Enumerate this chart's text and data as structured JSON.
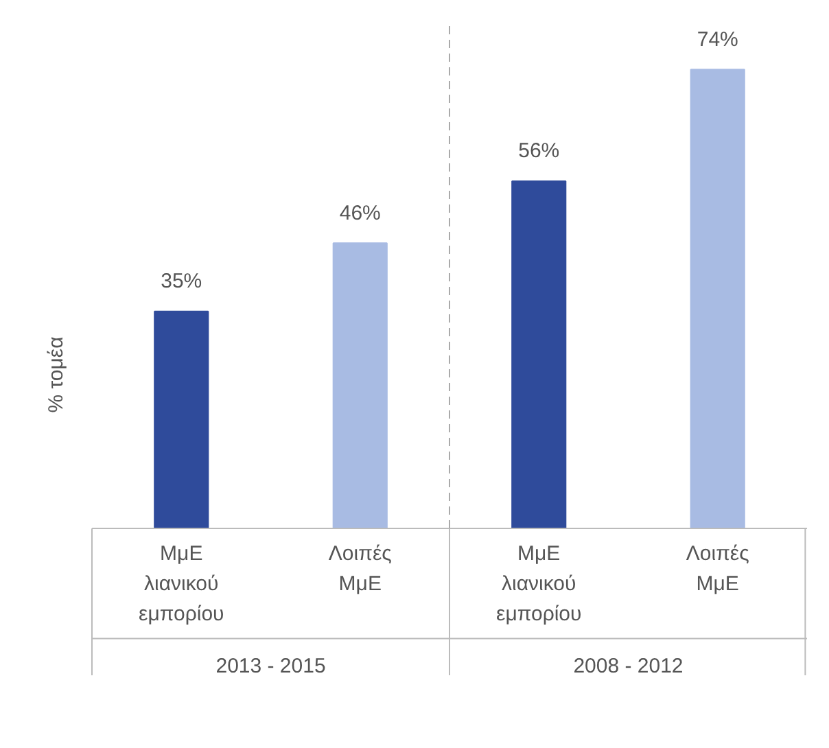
{
  "chart_data": {
    "type": "bar",
    "ylabel": "% τομέα",
    "categories": [
      "ΜμΕ\nλιανικού\nεμπορίου",
      "Λοιπές\nΜμΕ",
      "ΜμΕ\nλιανικού\nεμπορίου",
      "Λοιπές\nΜμΕ"
    ],
    "values": [
      35,
      46,
      56,
      74
    ],
    "colors": [
      "#2f4b9b",
      "#a8bbe3",
      "#2f4b9b",
      "#a8bbe3"
    ],
    "value_labels": [
      "35%",
      "46%",
      "56%",
      "74%"
    ],
    "annotations": [
      "2013 - 2015",
      "2008 - 2012"
    ],
    "grid": false
  }
}
